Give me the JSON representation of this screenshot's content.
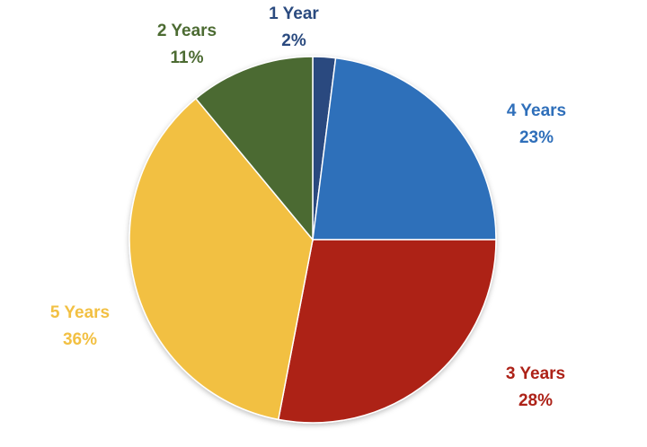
{
  "chart_data": {
    "type": "pie",
    "title": "",
    "categories": [
      "1 Year",
      "4 Years",
      "3 Years",
      "5 Years",
      "2 Years"
    ],
    "values": [
      2,
      23,
      28,
      36,
      11
    ],
    "value_labels": [
      "2%",
      "23%",
      "28%",
      "36%",
      "11%"
    ],
    "colors": [
      "#2a4a7f",
      "#2f6fba",
      "#ad2218",
      "#f2c043",
      "#4c6b32"
    ],
    "start_angle_deg": 0,
    "direction": "clockwise",
    "legend": "none",
    "labels_outside": true
  }
}
